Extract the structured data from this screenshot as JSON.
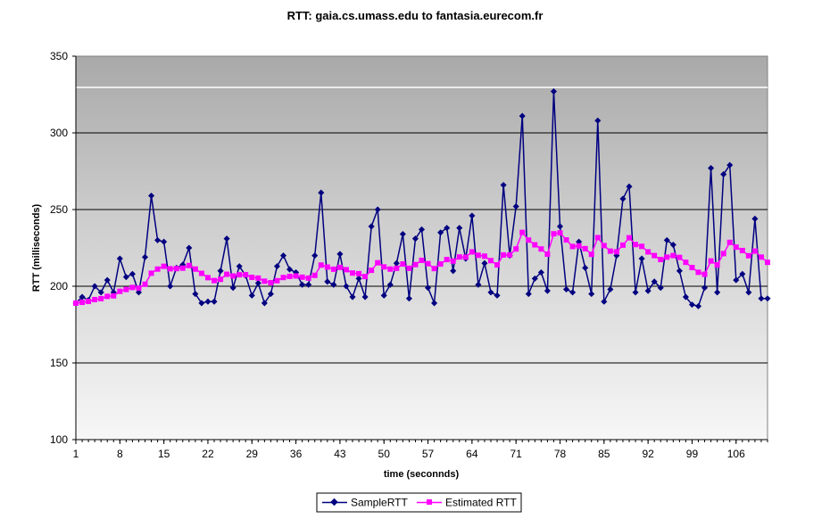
{
  "chart_data": {
    "type": "line",
    "title": "RTT: gaia.cs.umass.edu to fantasia.eurecom.fr",
    "xlabel": "time (seconnds)",
    "ylabel": "RTT (milliseconds)",
    "ylim": [
      100,
      350
    ],
    "yticks": [
      "100",
      "150",
      "200",
      "250",
      "300",
      "350"
    ],
    "xlim": [
      1,
      111
    ],
    "xticks": [
      "1",
      "8",
      "15",
      "22",
      "29",
      "36",
      "43",
      "50",
      "57",
      "64",
      "71",
      "78",
      "85",
      "92",
      "99",
      "106"
    ],
    "grid": true,
    "legend_position": "bottom",
    "x": [
      1,
      2,
      3,
      4,
      5,
      6,
      7,
      8,
      9,
      10,
      11,
      12,
      13,
      14,
      15,
      16,
      17,
      18,
      19,
      20,
      21,
      22,
      23,
      24,
      25,
      26,
      27,
      28,
      29,
      30,
      31,
      32,
      33,
      34,
      35,
      36,
      37,
      38,
      39,
      40,
      41,
      42,
      43,
      44,
      45,
      46,
      47,
      48,
      49,
      50,
      51,
      52,
      53,
      54,
      55,
      56,
      57,
      58,
      59,
      60,
      61,
      62,
      63,
      64,
      65,
      66,
      67,
      68,
      69,
      70,
      71,
      72,
      73,
      74,
      75,
      76,
      77,
      78,
      79,
      80,
      81,
      82,
      83,
      84,
      85,
      86,
      87,
      88,
      89,
      90,
      91,
      92,
      93,
      94,
      95,
      96,
      97,
      98,
      99,
      100,
      101,
      102,
      103,
      104,
      105,
      106,
      107,
      108,
      109,
      110,
      111
    ],
    "series": [
      {
        "name": "SampleRTT",
        "color": "#000080",
        "marker": "diamond",
        "values": [
          189,
          193,
          191,
          200,
          196,
          204,
          196,
          218,
          206,
          208,
          196,
          219,
          259,
          230,
          229,
          200,
          212,
          214,
          225,
          195,
          189,
          190,
          190,
          210,
          231,
          199,
          213,
          207,
          194,
          202,
          189,
          195,
          213,
          220,
          211,
          209,
          201,
          201,
          220,
          261,
          203,
          201,
          221,
          200,
          193,
          205,
          193,
          239,
          250,
          194,
          201,
          215,
          234,
          192,
          231,
          237,
          199,
          189,
          235,
          238,
          210,
          238,
          218,
          246,
          201,
          215,
          196,
          194,
          266,
          220,
          252,
          311,
          195,
          205,
          209,
          197,
          327,
          239,
          198,
          196,
          229,
          212,
          195,
          308,
          190,
          198,
          220,
          257,
          265,
          196,
          218,
          197,
          203,
          199,
          230,
          227,
          210,
          193,
          188,
          187,
          199,
          277,
          196,
          273,
          279,
          204,
          208,
          196,
          244,
          192,
          192
        ]
      },
      {
        "name": "Estimated RTT",
        "color": "#ff00ff",
        "marker": "square",
        "values": [
          189,
          189.5,
          190.1,
          191.3,
          191.9,
          193.4,
          193.7,
          196.7,
          197.9,
          199.2,
          198.8,
          201.3,
          208.5,
          211.2,
          213.0,
          211.4,
          211.5,
          211.8,
          213.5,
          211.2,
          208.4,
          205.6,
          203.7,
          204.5,
          207.8,
          206.7,
          207.5,
          207.5,
          205.8,
          205.3,
          203.3,
          202.3,
          203.6,
          205.7,
          206.4,
          206.7,
          205.9,
          205.3,
          207.1,
          213.8,
          212.5,
          211.1,
          212.3,
          210.8,
          208.6,
          208.2,
          206.3,
          210.4,
          215.3,
          212.6,
          211.2,
          211.7,
          214.5,
          211.7,
          214.1,
          216.9,
          214.7,
          211.5,
          214.5,
          217.4,
          216.4,
          219.1,
          219.0,
          222.4,
          220.2,
          219.6,
          216.7,
          213.9,
          220.4,
          220.4,
          224.3,
          235.1,
          230.1,
          227.0,
          224.3,
          220.9,
          234.2,
          234.8,
          230.2,
          225.9,
          226.3,
          224.5,
          220.8,
          231.7,
          226.5,
          222.9,
          222.5,
          226.8,
          231.6,
          227.2,
          226.0,
          222.4,
          220.0,
          217.4,
          219.0,
          220.0,
          218.8,
          215.6,
          212.2,
          209.1,
          207.8,
          216.5,
          213.9,
          221.3,
          228.6,
          225.5,
          223.3,
          219.9,
          222.9,
          219.0,
          215.6
        ]
      }
    ]
  }
}
